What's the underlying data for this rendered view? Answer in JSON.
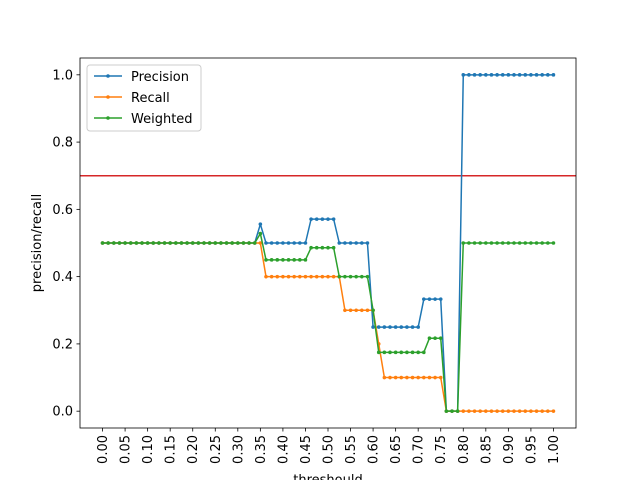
{
  "chart_data": {
    "type": "line",
    "title": "",
    "xlabel": "threshould",
    "ylabel": "precision/recall",
    "xlim": [
      -0.05,
      1.05
    ],
    "ylim": [
      -0.05,
      1.05
    ],
    "grid": false,
    "legend_position": "top-left",
    "x_ticks": [
      "0.00",
      "0.05",
      "0.10",
      "0.15",
      "0.20",
      "0.25",
      "0.30",
      "0.35",
      "0.40",
      "0.45",
      "0.50",
      "0.55",
      "0.60",
      "0.65",
      "0.70",
      "0.75",
      "0.80",
      "0.85",
      "0.90",
      "0.95",
      "1.00"
    ],
    "y_ticks": [
      "0.0",
      "0.2",
      "0.4",
      "0.6",
      "0.8",
      "1.0"
    ],
    "hline": {
      "y": 0.7,
      "color": "#d62728"
    },
    "x": [
      0,
      0.0125,
      0.025,
      0.0375,
      0.05,
      0.0625,
      0.075,
      0.0875,
      0.1,
      0.1125,
      0.125,
      0.1375,
      0.15,
      0.1625,
      0.175,
      0.1875,
      0.2,
      0.2125,
      0.225,
      0.2375,
      0.25,
      0.2625,
      0.275,
      0.2875,
      0.3,
      0.3125,
      0.325,
      0.3375,
      0.35,
      0.3625,
      0.375,
      0.3875,
      0.4,
      0.4125,
      0.425,
      0.4375,
      0.45,
      0.4625,
      0.475,
      0.4875,
      0.5,
      0.5125,
      0.525,
      0.5375,
      0.55,
      0.5625,
      0.575,
      0.5875,
      0.6,
      0.6125,
      0.625,
      0.6375,
      0.65,
      0.6625,
      0.675,
      0.6875,
      0.7,
      0.7125,
      0.725,
      0.7375,
      0.75,
      0.7625,
      0.775,
      0.7875,
      0.8,
      0.8125,
      0.825,
      0.8375,
      0.85,
      0.8625,
      0.875,
      0.8875,
      0.9,
      0.9125,
      0.925,
      0.9375,
      0.95,
      0.9625,
      0.975,
      0.9875,
      1.0
    ],
    "series": [
      {
        "name": "Precision",
        "color": "#1f77b4",
        "values": [
          0.5,
          0.5,
          0.5,
          0.5,
          0.5,
          0.5,
          0.5,
          0.5,
          0.5,
          0.5,
          0.5,
          0.5,
          0.5,
          0.5,
          0.5,
          0.5,
          0.5,
          0.5,
          0.5,
          0.5,
          0.5,
          0.5,
          0.5,
          0.5,
          0.5,
          0.5,
          0.5,
          0.5,
          0.556,
          0.5,
          0.5,
          0.5,
          0.5,
          0.5,
          0.5,
          0.5,
          0.5,
          0.571,
          0.571,
          0.571,
          0.571,
          0.571,
          0.5,
          0.5,
          0.5,
          0.5,
          0.5,
          0.5,
          0.25,
          0.25,
          0.25,
          0.25,
          0.25,
          0.25,
          0.25,
          0.25,
          0.25,
          0.333,
          0.333,
          0.333,
          0.333,
          0,
          0,
          0,
          1,
          1,
          1,
          1,
          1,
          1,
          1,
          1,
          1,
          1,
          1,
          1,
          1,
          1,
          1,
          1,
          1
        ]
      },
      {
        "name": "Recall",
        "color": "#ff7f0e",
        "values": [
          0.5,
          0.5,
          0.5,
          0.5,
          0.5,
          0.5,
          0.5,
          0.5,
          0.5,
          0.5,
          0.5,
          0.5,
          0.5,
          0.5,
          0.5,
          0.5,
          0.5,
          0.5,
          0.5,
          0.5,
          0.5,
          0.5,
          0.5,
          0.5,
          0.5,
          0.5,
          0.5,
          0.5,
          0.5,
          0.4,
          0.4,
          0.4,
          0.4,
          0.4,
          0.4,
          0.4,
          0.4,
          0.4,
          0.4,
          0.4,
          0.4,
          0.4,
          0.4,
          0.3,
          0.3,
          0.3,
          0.3,
          0.3,
          0.3,
          0.2,
          0.1,
          0.1,
          0.1,
          0.1,
          0.1,
          0.1,
          0.1,
          0.1,
          0.1,
          0.1,
          0.1,
          0,
          0,
          0,
          0,
          0,
          0,
          0,
          0,
          0,
          0,
          0,
          0,
          0,
          0,
          0,
          0,
          0,
          0,
          0,
          0
        ]
      },
      {
        "name": "Weighted",
        "color": "#2ca02c",
        "values": [
          0.5,
          0.5,
          0.5,
          0.5,
          0.5,
          0.5,
          0.5,
          0.5,
          0.5,
          0.5,
          0.5,
          0.5,
          0.5,
          0.5,
          0.5,
          0.5,
          0.5,
          0.5,
          0.5,
          0.5,
          0.5,
          0.5,
          0.5,
          0.5,
          0.5,
          0.5,
          0.5,
          0.5,
          0.528,
          0.45,
          0.45,
          0.45,
          0.45,
          0.45,
          0.45,
          0.45,
          0.45,
          0.486,
          0.486,
          0.486,
          0.486,
          0.486,
          0.4,
          0.4,
          0.4,
          0.4,
          0.4,
          0.4,
          0.3,
          0.175,
          0.175,
          0.175,
          0.175,
          0.175,
          0.175,
          0.175,
          0.175,
          0.175,
          0.217,
          0.217,
          0.217,
          0,
          0,
          0,
          0.5,
          0.5,
          0.5,
          0.5,
          0.5,
          0.5,
          0.5,
          0.5,
          0.5,
          0.5,
          0.5,
          0.5,
          0.5,
          0.5,
          0.5,
          0.5,
          0.5
        ]
      }
    ]
  }
}
